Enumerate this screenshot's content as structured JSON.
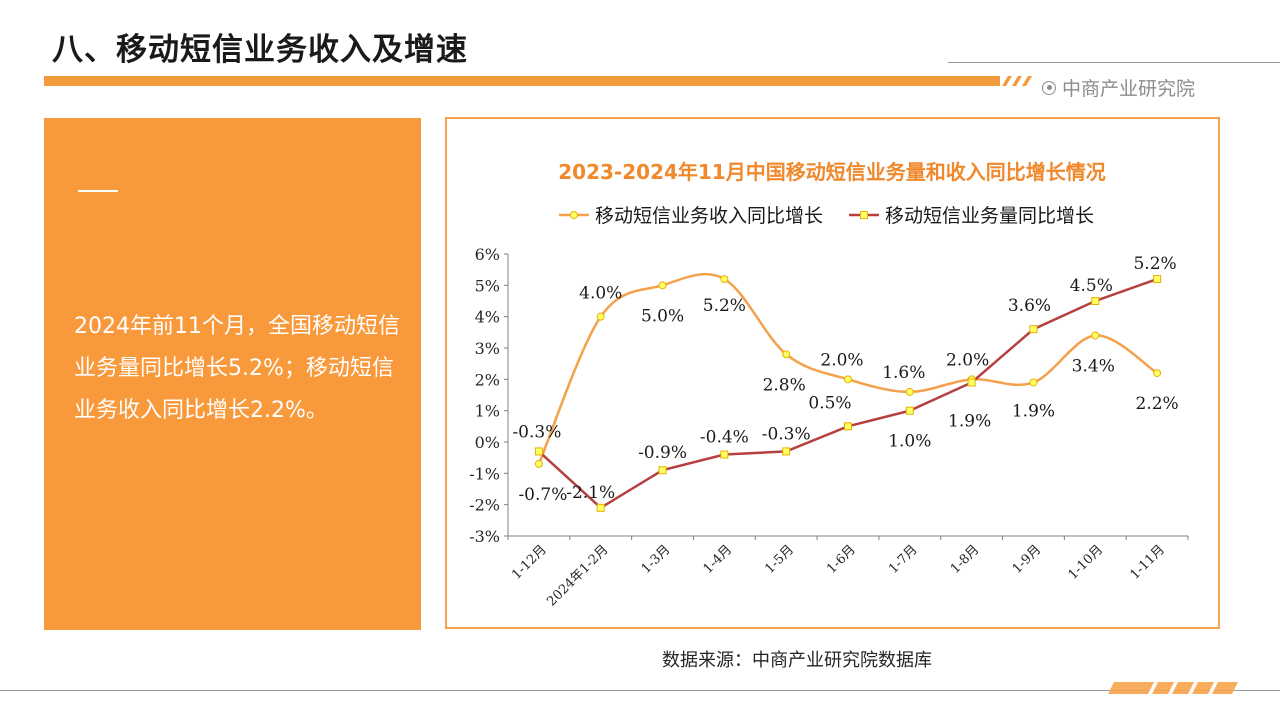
{
  "header": {
    "title": "八、移动短信业务收入及增速",
    "brand": "中商产业研究院",
    "accent_color": "#f39a3d"
  },
  "left_panel": {
    "text": "2024年前11个月，全国移动短信业务量同比增长5.2%；移动短信业务收入同比增长2.2%。",
    "background_color": "#f8993b"
  },
  "source": "数据来源：中商产业研究院数据库",
  "chart_data": {
    "type": "line",
    "title": "2023-2024年11月中国移动短信业务量和收入同比增长情况",
    "categories": [
      "1-12月",
      "2024年1-2月",
      "1-3月",
      "1-4月",
      "1-5月",
      "1-6月",
      "1-7月",
      "1-8月",
      "1-9月",
      "1-10月",
      "1-11月"
    ],
    "series": [
      {
        "name": "移动短信业务收入同比增长",
        "values": [
          -0.7,
          4.0,
          5.0,
          5.2,
          2.8,
          2.0,
          1.6,
          2.0,
          1.9,
          3.4,
          2.2
        ],
        "labels": [
          "-0.7%",
          "4.0%",
          "5.0%",
          "5.2%",
          "2.8%",
          "2.0%",
          "1.6%",
          "2.0%",
          "1.9%",
          "3.4%",
          "2.2%"
        ],
        "color": "#f5a04a",
        "marker": "circle",
        "smooth": true
      },
      {
        "name": "移动短信业务量同比增长",
        "values": [
          -0.3,
          -2.1,
          -0.9,
          -0.4,
          -0.3,
          0.5,
          1.0,
          1.9,
          3.6,
          4.5,
          5.2
        ],
        "labels": [
          "-0.3%",
          "-2.1%",
          "-0.9%",
          "-0.4%",
          "-0.3%",
          "0.5%",
          "1.0%",
          "1.9%",
          "3.6%",
          "4.5%",
          "5.2%"
        ],
        "color": "#b5403e",
        "marker": "square",
        "smooth": false
      }
    ],
    "ylim": [
      -3,
      6
    ],
    "yticks": [
      "-3%",
      "-2%",
      "-1%",
      "0%",
      "1%",
      "2%",
      "3%",
      "4%",
      "5%",
      "6%"
    ],
    "legend_position": "top",
    "grid": false
  }
}
